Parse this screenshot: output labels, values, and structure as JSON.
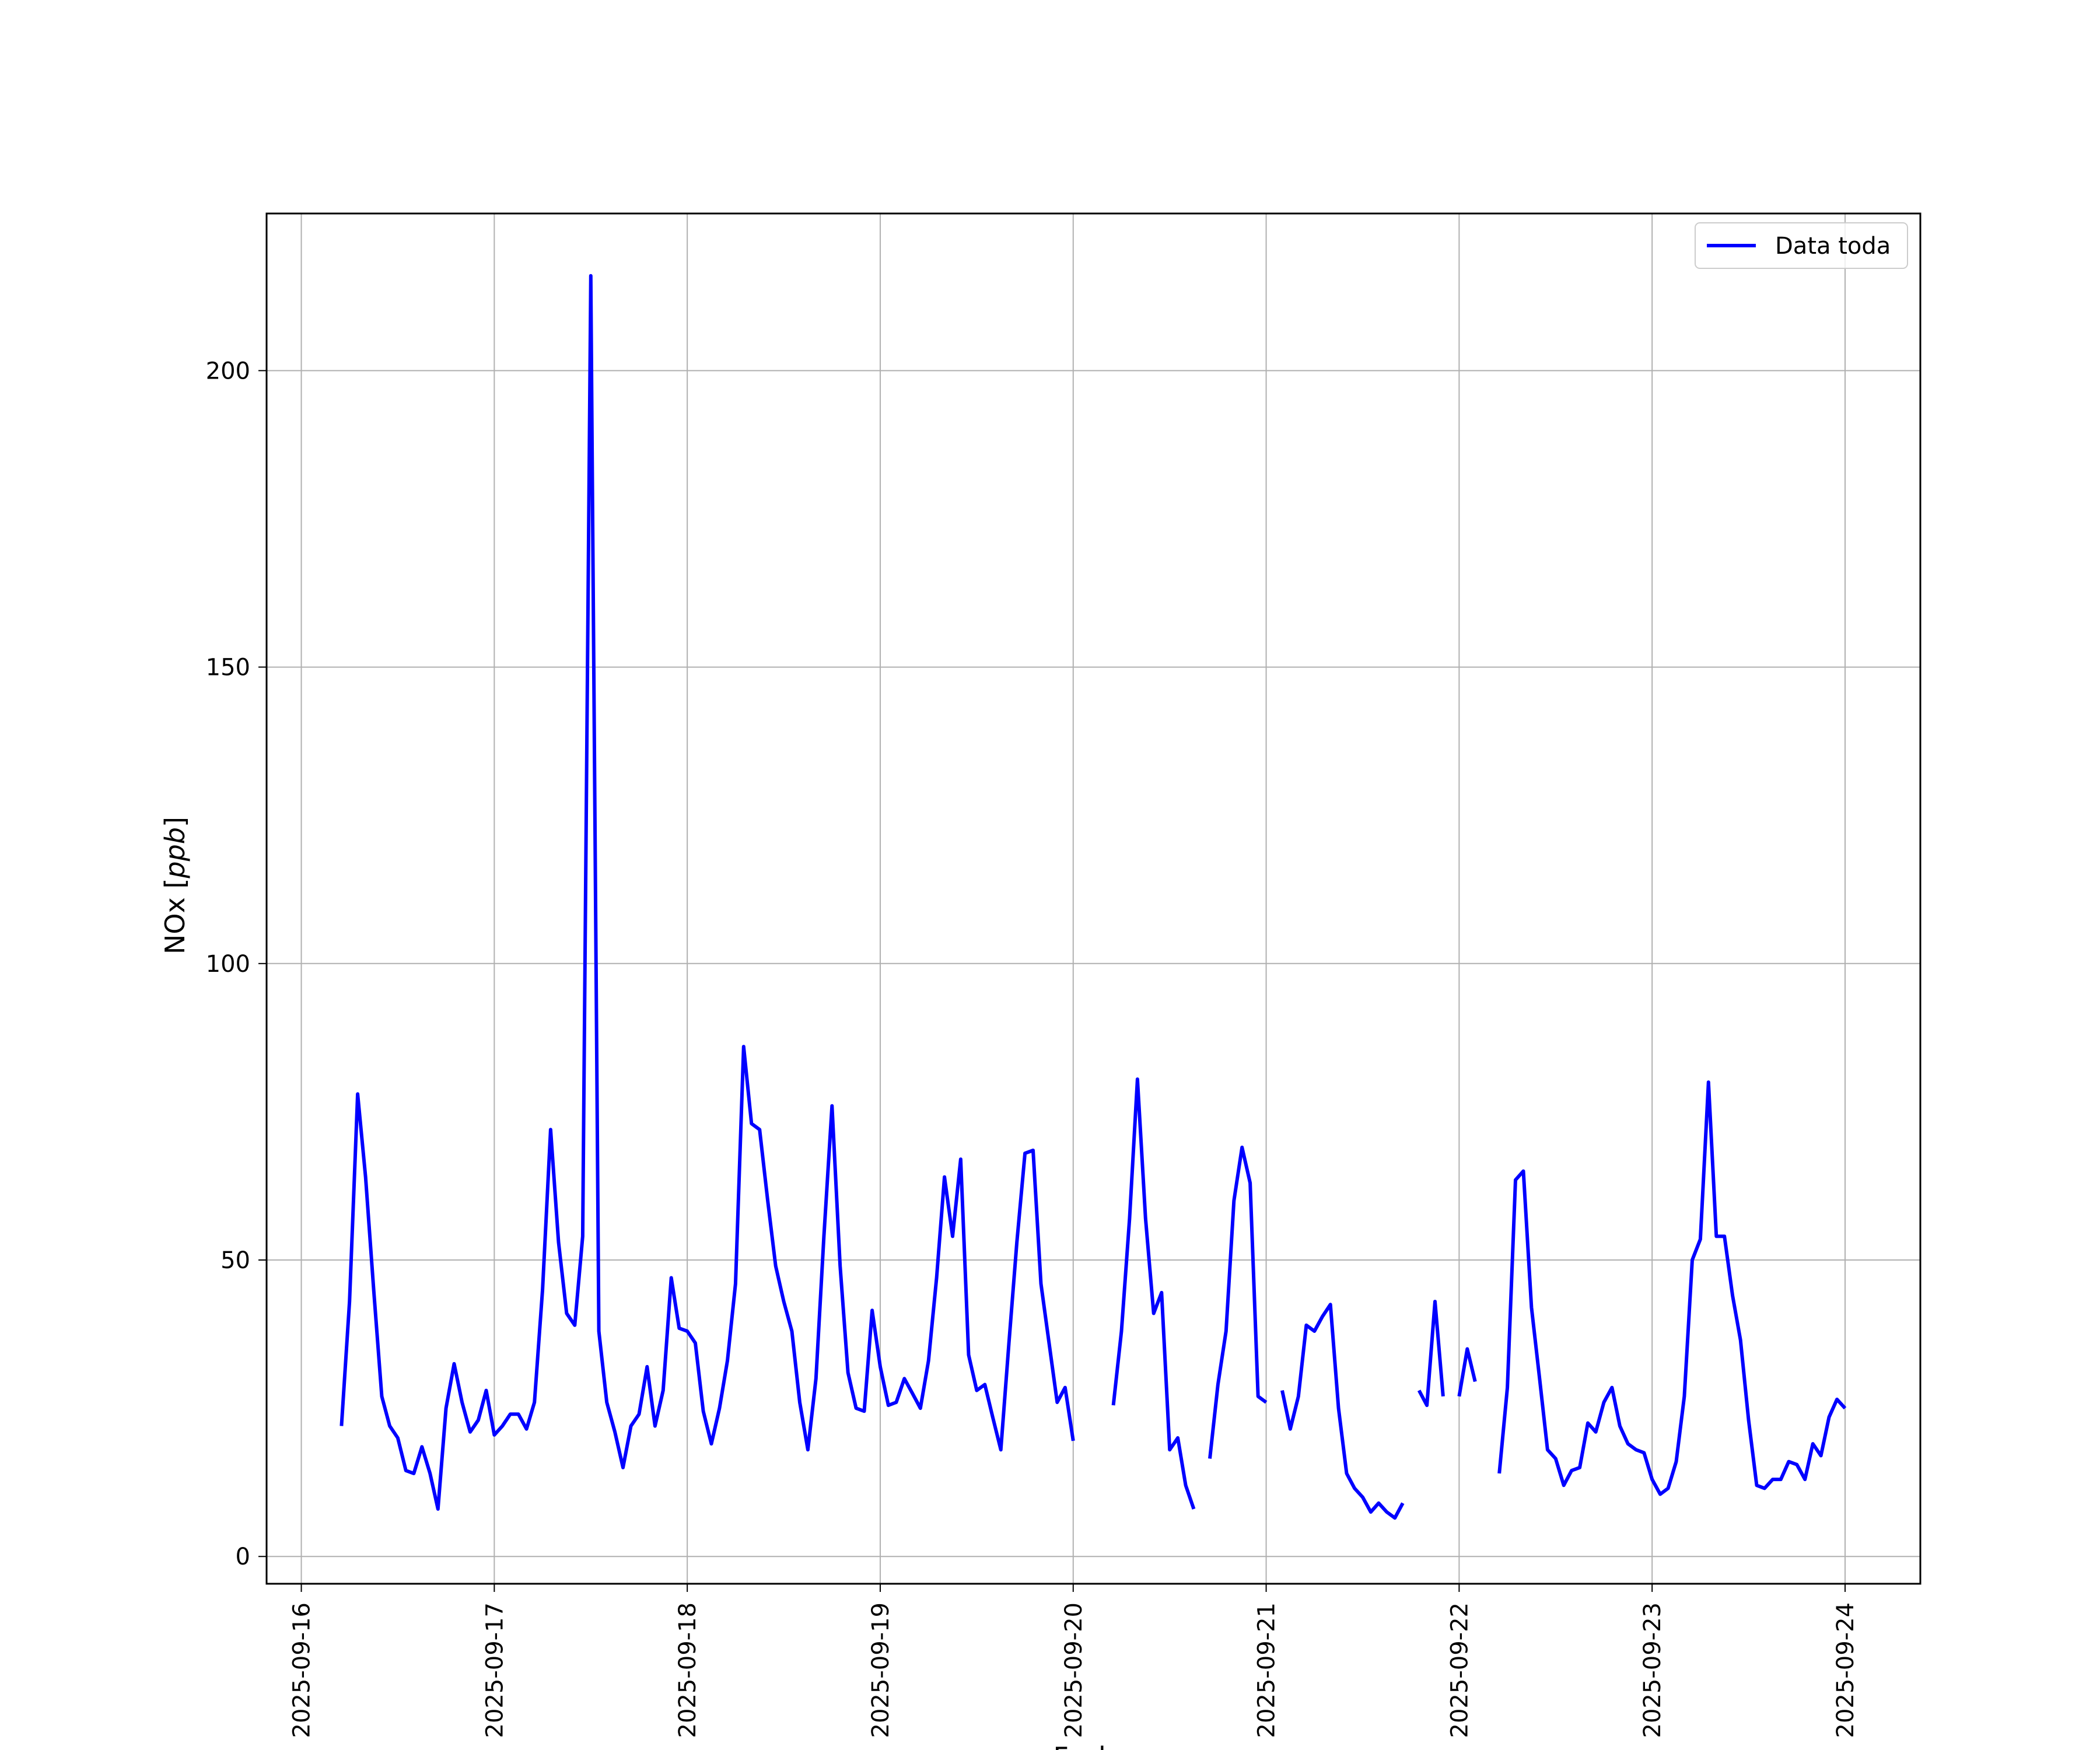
{
  "chart_data": {
    "type": "line",
    "xlabel": "Fecha",
    "ylabel_main": "NOx [",
    "ylabel_unit": "ppb",
    "ylabel_close": "]",
    "x_ticks": [
      "2025-09-16",
      "2025-09-17",
      "2025-09-18",
      "2025-09-19",
      "2025-09-20",
      "2025-09-21",
      "2025-09-22",
      "2025-09-23",
      "2025-09-24"
    ],
    "y_ticks": [
      0,
      50,
      100,
      150,
      200
    ],
    "xlim": [
      -0.18,
      8.39
    ],
    "ylim": [
      -4.6,
      226.5
    ],
    "grid": true,
    "legend_position": "top-right",
    "series": [
      {
        "name": "Data toda",
        "color": "#0000ff",
        "segments": [
          [
            [
              0.208,
              22
            ],
            [
              0.25,
              43
            ],
            [
              0.292,
              78
            ],
            [
              0.333,
              64
            ],
            [
              0.375,
              45
            ],
            [
              0.417,
              27
            ],
            [
              0.458,
              22
            ],
            [
              0.5,
              20
            ],
            [
              0.542,
              14.5
            ],
            [
              0.583,
              14
            ],
            [
              0.625,
              18.5
            ],
            [
              0.667,
              14
            ],
            [
              0.708,
              8
            ],
            [
              0.75,
              25
            ],
            [
              0.792,
              32.5
            ],
            [
              0.833,
              26
            ],
            [
              0.875,
              21
            ],
            [
              0.917,
              23
            ],
            [
              0.958,
              28
            ],
            [
              1.0,
              20.5
            ],
            [
              1.042,
              22
            ],
            [
              1.083,
              24
            ],
            [
              1.125,
              24
            ],
            [
              1.167,
              21.5
            ],
            [
              1.208,
              26
            ],
            [
              1.25,
              45
            ],
            [
              1.292,
              72
            ],
            [
              1.333,
              53
            ],
            [
              1.375,
              41
            ],
            [
              1.417,
              39
            ],
            [
              1.458,
              54
            ],
            [
              1.5,
              216
            ],
            [
              1.542,
              38
            ],
            [
              1.583,
              26
            ],
            [
              1.625,
              21
            ],
            [
              1.667,
              15
            ],
            [
              1.708,
              22
            ],
            [
              1.75,
              24
            ],
            [
              1.792,
              32
            ],
            [
              1.833,
              22
            ],
            [
              1.875,
              28
            ],
            [
              1.917,
              47
            ],
            [
              1.958,
              38.5
            ],
            [
              2.0,
              38
            ],
            [
              2.042,
              36
            ],
            [
              2.083,
              24.5
            ],
            [
              2.125,
              19
            ],
            [
              2.167,
              25
            ],
            [
              2.208,
              33
            ],
            [
              2.25,
              46
            ],
            [
              2.292,
              86
            ],
            [
              2.333,
              73
            ],
            [
              2.375,
              72
            ],
            [
              2.417,
              60
            ],
            [
              2.458,
              49
            ],
            [
              2.5,
              43
            ],
            [
              2.542,
              38
            ],
            [
              2.583,
              26
            ],
            [
              2.625,
              18
            ],
            [
              2.667,
              30
            ],
            [
              2.708,
              54
            ],
            [
              2.75,
              76
            ],
            [
              2.792,
              49
            ],
            [
              2.833,
              31
            ],
            [
              2.875,
              25
            ],
            [
              2.917,
              24.5
            ],
            [
              2.958,
              41.5
            ],
            [
              3.0,
              32
            ],
            [
              3.042,
              25.5
            ],
            [
              3.083,
              26
            ],
            [
              3.125,
              30
            ],
            [
              3.167,
              27.5
            ],
            [
              3.208,
              25
            ],
            [
              3.25,
              33
            ],
            [
              3.292,
              47
            ],
            [
              3.333,
              64
            ],
            [
              3.375,
              54
            ],
            [
              3.417,
              67
            ],
            [
              3.458,
              34
            ],
            [
              3.5,
              28
            ],
            [
              3.542,
              29
            ],
            [
              3.583,
              23.5
            ],
            [
              3.625,
              18
            ],
            [
              3.667,
              36
            ],
            [
              3.708,
              53
            ],
            [
              3.75,
              68
            ],
            [
              3.792,
              68.5
            ],
            [
              3.833,
              46
            ],
            [
              3.875,
              36
            ],
            [
              3.917,
              26
            ],
            [
              3.958,
              28.5
            ],
            [
              4.0,
              19.5
            ]
          ],
          [
            [
              4.208,
              25.5
            ],
            [
              4.25,
              38
            ],
            [
              4.292,
              57
            ],
            [
              4.333,
              80.5
            ],
            [
              4.375,
              57
            ],
            [
              4.417,
              41
            ],
            [
              4.458,
              44.5
            ],
            [
              4.5,
              18
            ],
            [
              4.542,
              20
            ],
            [
              4.583,
              12
            ],
            [
              4.625,
              8
            ]
          ],
          [
            [
              4.708,
              16.5
            ],
            [
              4.75,
              29
            ],
            [
              4.792,
              38
            ],
            [
              4.833,
              60
            ],
            [
              4.875,
              69
            ],
            [
              4.917,
              63
            ],
            [
              4.958,
              27
            ],
            [
              5.0,
              26
            ]
          ],
          [
            [
              5.083,
              28
            ],
            [
              5.125,
              21.5
            ],
            [
              5.167,
              27
            ],
            [
              5.208,
              39
            ],
            [
              5.25,
              38
            ],
            [
              5.292,
              40.5
            ],
            [
              5.333,
              42.5
            ],
            [
              5.375,
              25
            ],
            [
              5.417,
              14
            ],
            [
              5.458,
              11.5
            ],
            [
              5.5,
              10
            ],
            [
              5.542,
              7.5
            ],
            [
              5.583,
              9
            ],
            [
              5.625,
              7.5
            ],
            [
              5.667,
              6.5
            ],
            [
              5.708,
              9
            ]
          ],
          [
            [
              5.792,
              28
            ],
            [
              5.833,
              25.5
            ],
            [
              5.875,
              43
            ],
            [
              5.917,
              27
            ]
          ],
          [
            [
              6.0,
              27
            ],
            [
              6.042,
              35
            ],
            [
              6.083,
              29.5
            ]
          ],
          [
            [
              6.208,
              14
            ],
            [
              6.25,
              28.5
            ],
            [
              6.292,
              63.5
            ],
            [
              6.333,
              65
            ],
            [
              6.375,
              42
            ],
            [
              6.417,
              30
            ],
            [
              6.458,
              18
            ],
            [
              6.5,
              16.5
            ],
            [
              6.542,
              12
            ],
            [
              6.583,
              14.5
            ],
            [
              6.625,
              15
            ],
            [
              6.667,
              22.5
            ],
            [
              6.708,
              21
            ],
            [
              6.75,
              26
            ],
            [
              6.792,
              28.5
            ],
            [
              6.833,
              22
            ],
            [
              6.875,
              19
            ],
            [
              6.917,
              18
            ],
            [
              6.958,
              17.5
            ],
            [
              7.0,
              13
            ],
            [
              7.042,
              10.5
            ],
            [
              7.083,
              11.5
            ],
            [
              7.125,
              16
            ],
            [
              7.167,
              27
            ],
            [
              7.208,
              50
            ],
            [
              7.25,
              53.5
            ],
            [
              7.292,
              80
            ],
            [
              7.333,
              54
            ],
            [
              7.375,
              54
            ],
            [
              7.417,
              44
            ],
            [
              7.458,
              36.5
            ],
            [
              7.5,
              23
            ],
            [
              7.542,
              12
            ],
            [
              7.583,
              11.5
            ],
            [
              7.625,
              13
            ],
            [
              7.667,
              13
            ],
            [
              7.708,
              16
            ],
            [
              7.75,
              15.5
            ],
            [
              7.792,
              13
            ],
            [
              7.833,
              19
            ],
            [
              7.875,
              17
            ],
            [
              7.917,
              23.5
            ],
            [
              7.958,
              26.5
            ],
            [
              8.0,
              25
            ]
          ]
        ]
      }
    ]
  }
}
